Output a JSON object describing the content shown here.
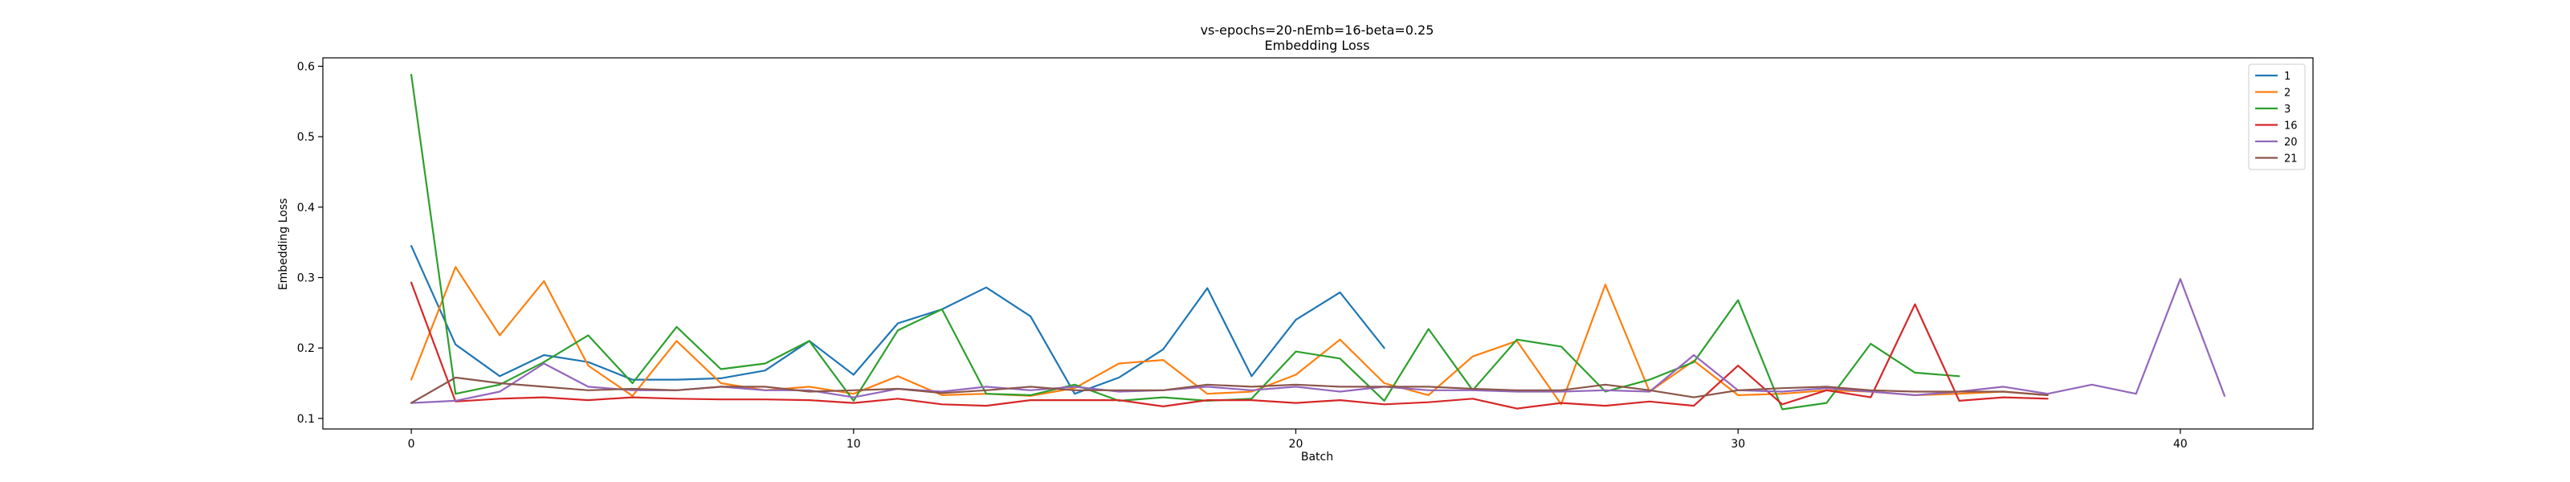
{
  "chart_data": {
    "type": "line",
    "title": "vs-epochs=20-nEmb=16-beta=0.25",
    "subtitle": "Embedding Loss",
    "xlabel": "Batch",
    "ylabel": "Embedding Loss",
    "xlim": [
      -2,
      43
    ],
    "ylim": [
      0.085,
      0.612
    ],
    "xticks": [
      0,
      10,
      20,
      30,
      40
    ],
    "yticks": [
      0.1,
      0.2,
      0.3,
      0.4,
      0.5,
      0.6
    ],
    "grid": false,
    "legend_position": "top-right",
    "series": [
      {
        "name": "1",
        "color": "#1f77b4",
        "y": [
          0.345,
          0.205,
          0.16,
          0.19,
          0.18,
          0.155,
          0.155,
          0.157,
          0.168,
          0.21,
          0.162,
          0.235,
          0.255,
          0.286,
          0.245,
          0.135,
          0.158,
          0.198,
          0.285,
          0.16,
          0.24,
          0.279,
          0.2
        ]
      },
      {
        "name": "2",
        "color": "#ff7f0e",
        "y": [
          0.155,
          0.315,
          0.218,
          0.295,
          0.175,
          0.132,
          0.21,
          0.15,
          0.14,
          0.145,
          0.135,
          0.16,
          0.133,
          0.135,
          0.132,
          0.143,
          0.178,
          0.183,
          0.135,
          0.138,
          0.162,
          0.212,
          0.15,
          0.133,
          0.188,
          0.21,
          0.12,
          0.29,
          0.138,
          0.182,
          0.133,
          0.135,
          0.14,
          0.138,
          0.133,
          0.135,
          0.138,
          0.133
        ]
      },
      {
        "name": "3",
        "color": "#2ca02c",
        "y": [
          0.588,
          0.135,
          0.148,
          0.18,
          0.218,
          0.15,
          0.23,
          0.17,
          0.178,
          0.21,
          0.125,
          0.225,
          0.255,
          0.135,
          0.133,
          0.148,
          0.125,
          0.13,
          0.125,
          0.128,
          0.195,
          0.185,
          0.125,
          0.227,
          0.14,
          0.212,
          0.202,
          0.138,
          0.155,
          0.18,
          0.268,
          0.113,
          0.122,
          0.206,
          0.165,
          0.16
        ]
      },
      {
        "name": "16",
        "color": "#d62728",
        "y": [
          0.293,
          0.124,
          0.128,
          0.13,
          0.126,
          0.13,
          0.128,
          0.127,
          0.127,
          0.126,
          0.122,
          0.128,
          0.12,
          0.118,
          0.126,
          0.126,
          0.126,
          0.117,
          0.126,
          0.126,
          0.122,
          0.126,
          0.12,
          0.123,
          0.128,
          0.114,
          0.122,
          0.118,
          0.124,
          0.118,
          0.175,
          0.12,
          0.14,
          0.13,
          0.262,
          0.125,
          0.13,
          0.128
        ]
      },
      {
        "name": "20",
        "color": "#9467bd",
        "y": [
          0.122,
          0.125,
          0.138,
          0.178,
          0.145,
          0.14,
          0.14,
          0.145,
          0.14,
          0.14,
          0.13,
          0.142,
          0.138,
          0.145,
          0.14,
          0.145,
          0.138,
          0.14,
          0.145,
          0.14,
          0.145,
          0.138,
          0.145,
          0.14,
          0.14,
          0.138,
          0.138,
          0.14,
          0.138,
          0.19,
          0.14,
          0.138,
          0.143,
          0.138,
          0.133,
          0.138,
          0.145,
          0.135,
          0.148,
          0.135,
          0.298,
          0.132
        ]
      },
      {
        "name": "21",
        "color": "#8c564b",
        "y": [
          0.122,
          0.158,
          0.15,
          0.145,
          0.14,
          0.142,
          0.14,
          0.145,
          0.145,
          0.138,
          0.14,
          0.142,
          0.136,
          0.14,
          0.145,
          0.14,
          0.14,
          0.14,
          0.148,
          0.145,
          0.148,
          0.145,
          0.145,
          0.145,
          0.142,
          0.14,
          0.14,
          0.148,
          0.14,
          0.13,
          0.14,
          0.143,
          0.145,
          0.14,
          0.138,
          0.138,
          0.138,
          0.133
        ]
      }
    ]
  }
}
